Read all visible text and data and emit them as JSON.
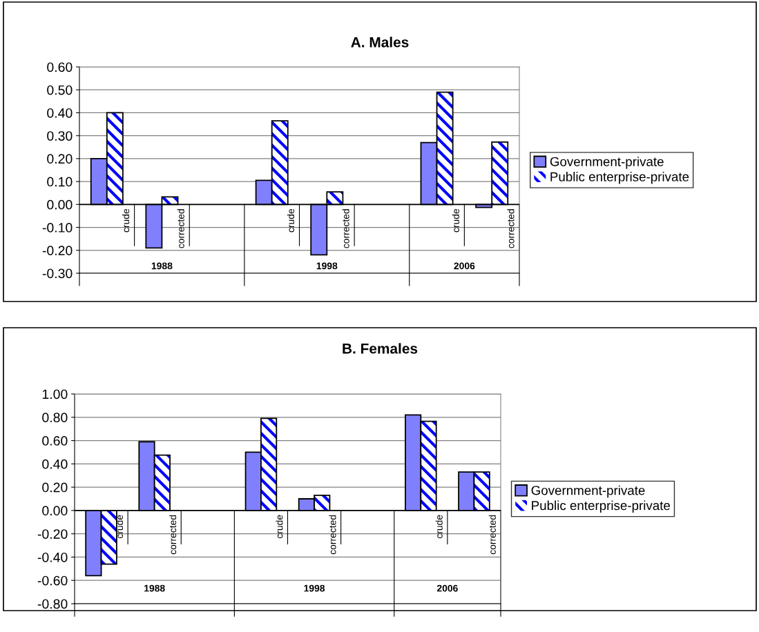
{
  "chart_data": [
    {
      "type": "bar",
      "title": "A. Males",
      "categories": [
        "crude",
        "corrected",
        null,
        "crude",
        "corrected",
        null,
        "crude",
        "corrected"
      ],
      "series": [
        {
          "name": "Government-private",
          "color": "#8080ff",
          "values": [
            0.2,
            -0.19,
            null,
            0.105,
            -0.22,
            null,
            0.27,
            -0.013
          ]
        },
        {
          "name": "Public enterprise-private",
          "color": "#0000ff",
          "values": [
            0.4,
            0.033,
            null,
            0.365,
            0.055,
            null,
            0.49,
            0.272
          ]
        }
      ],
      "ylim": [
        -0.3,
        0.6
      ],
      "yticks": [
        {
          "value": -0.3,
          "label": "-0.30"
        },
        {
          "value": -0.2,
          "label": "-0.20"
        },
        {
          "value": -0.1,
          "label": "-0.10"
        },
        {
          "value": 0,
          "label": "0.00"
        },
        {
          "value": 0.1,
          "label": "0.10"
        },
        {
          "value": 0.2,
          "label": "0.20"
        },
        {
          "value": 0.3,
          "label": "0.30"
        },
        {
          "value": 0.4,
          "label": "0.40"
        },
        {
          "value": 0.5,
          "label": "0.50"
        },
        {
          "value": 0.6,
          "label": "0.60"
        }
      ],
      "grid": "y",
      "legend": "right",
      "annotations": [
        "1988",
        "1998",
        "2006"
      ]
    },
    {
      "type": "bar",
      "title": "B. Females",
      "categories": [
        "crude",
        "corrected",
        null,
        "crude",
        "corrected",
        null,
        "crude",
        "corrected"
      ],
      "series": [
        {
          "name": "Government-private",
          "color": "#8080ff",
          "values": [
            -0.56,
            0.59,
            null,
            0.5,
            0.1,
            null,
            0.82,
            0.33
          ]
        },
        {
          "name": "Public enterprise-private",
          "color": "#0000ff",
          "values": [
            -0.46,
            0.475,
            null,
            0.79,
            0.13,
            null,
            0.765,
            0.33
          ]
        }
      ],
      "ylim": [
        -0.8,
        1.0
      ],
      "yticks": [
        {
          "value": -0.8,
          "label": "-0.80"
        },
        {
          "value": -0.6,
          "label": "-0.60"
        },
        {
          "value": -0.4,
          "label": "-0.40"
        },
        {
          "value": -0.2,
          "label": "-0.20"
        },
        {
          "value": 0,
          "label": "0.00"
        },
        {
          "value": 0.2,
          "label": "0.20"
        },
        {
          "value": 0.4,
          "label": "0.40"
        },
        {
          "value": 0.6,
          "label": "0.60"
        },
        {
          "value": 0.8,
          "label": "0.80"
        },
        {
          "value": 1.0,
          "label": "1.00"
        }
      ],
      "grid": "y",
      "legend": "right",
      "annotations": [
        "1988",
        "1998",
        "2006"
      ]
    }
  ]
}
